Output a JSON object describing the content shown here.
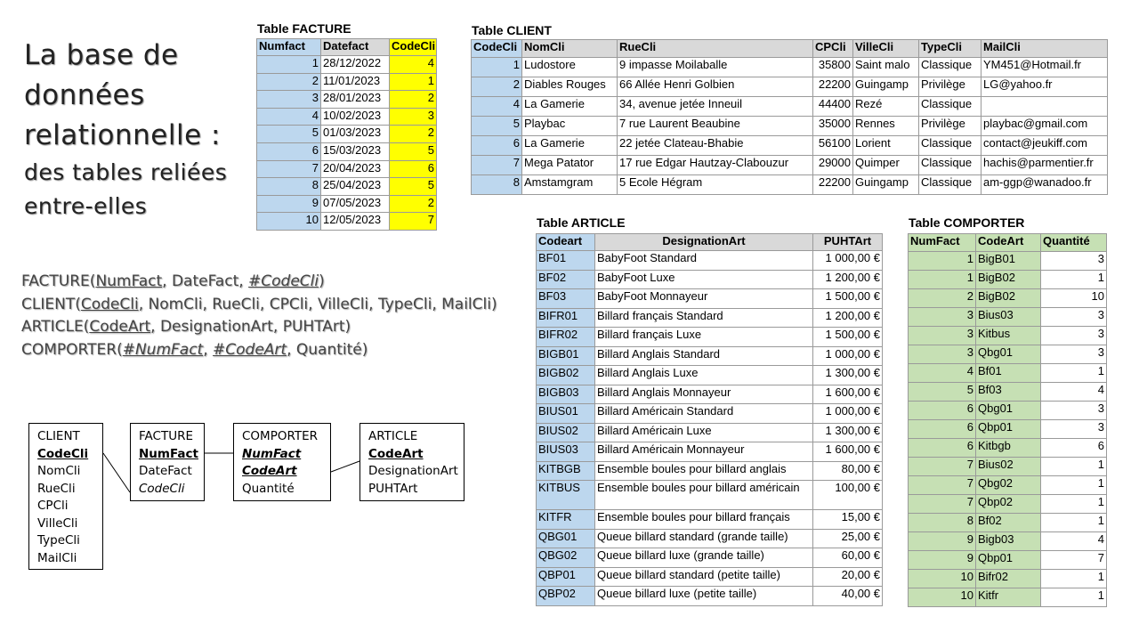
{
  "title": {
    "lines": [
      "La base de",
      "données",
      "relationnelle :",
      "des tables reliées",
      "entre-elles"
    ]
  },
  "schema": [
    [
      {
        "t": "FACTURE("
      },
      {
        "t": "NumFact",
        "s": "u"
      },
      {
        "t": ", DateFact, "
      },
      {
        "t": "#CodeCli",
        "s": "u i"
      },
      {
        "t": ")"
      }
    ],
    [
      {
        "t": "CLIENT("
      },
      {
        "t": "CodeCli",
        "s": "u"
      },
      {
        "t": ", NomCli, RueCli, CPCli, VilleCli, TypeCli, MailCli)"
      }
    ],
    [
      {
        "t": "ARTICLE("
      },
      {
        "t": "CodeArt",
        "s": "u"
      },
      {
        "t": ", DesignationArt, PUHTArt)"
      }
    ],
    [
      {
        "t": "COMPORTER("
      },
      {
        "t": "#NumFact",
        "s": "u i"
      },
      {
        "t": ", "
      },
      {
        "t": "#CodeArt",
        "s": "u i"
      },
      {
        "t": ", Quantité)"
      }
    ]
  ],
  "diagram": [
    {
      "name": "CLIENT",
      "fields": [
        {
          "t": "CodeCli",
          "s": "b u"
        },
        {
          "t": "NomCli"
        },
        {
          "t": "RueCli"
        },
        {
          "t": "CPCli"
        },
        {
          "t": "VilleCli"
        },
        {
          "t": "TypeCli"
        },
        {
          "t": "MailCli"
        }
      ]
    },
    {
      "name": "FACTURE",
      "fields": [
        {
          "t": "NumFact",
          "s": "b u"
        },
        {
          "t": "DateFact"
        },
        {
          "t": "CodeCli",
          "s": "i"
        }
      ]
    },
    {
      "name": "COMPORTER",
      "fields": [
        {
          "t": "NumFact",
          "s": "b u i"
        },
        {
          "t": "CodeArt",
          "s": "b u i"
        },
        {
          "t": "Quantité"
        }
      ]
    },
    {
      "name": "ARTICLE",
      "fields": [
        {
          "t": "CodeArt",
          "s": "b u"
        },
        {
          "t": "DesignationArt"
        },
        {
          "t": "PUHTArt"
        }
      ]
    }
  ],
  "tables": {
    "facture": {
      "title": "Table FACTURE",
      "headers": [
        "Numfact",
        "Datefact",
        "CodeCli"
      ],
      "rows": [
        [
          "1",
          "28/12/2022",
          "4"
        ],
        [
          "2",
          "11/01/2023",
          "1"
        ],
        [
          "3",
          "28/01/2023",
          "2"
        ],
        [
          "4",
          "10/02/2023",
          "3"
        ],
        [
          "5",
          "01/03/2023",
          "2"
        ],
        [
          "6",
          "15/03/2023",
          "5"
        ],
        [
          "7",
          "20/04/2023",
          "6"
        ],
        [
          "8",
          "25/04/2023",
          "5"
        ],
        [
          "9",
          "07/05/2023",
          "2"
        ],
        [
          "10",
          "12/05/2023",
          "7"
        ]
      ]
    },
    "client": {
      "title": "Table CLIENT",
      "headers": [
        "CodeCli",
        "NomCli",
        "RueCli",
        "CPCli",
        "VilleCli",
        "TypeCli",
        "MailCli"
      ],
      "rows": [
        [
          "1",
          "Ludostore",
          "9 impasse Moilaballe",
          "35800",
          "Saint malo",
          "Classique",
          "YM451@Hotmail.fr"
        ],
        [
          "2",
          "Diables Rouges",
          "66 Allée Henri Golbien",
          "22200",
          "Guingamp",
          "Privilège",
          "LG@yahoo.fr"
        ],
        [
          "4",
          "La Gamerie",
          "34, avenue jetée Inneuil",
          "44400",
          "Rezé",
          "Classique",
          null
        ],
        [
          "5",
          "Playbac",
          "7 rue Laurent Beaubine",
          "35000",
          "Rennes",
          "Privilège",
          "playbac@gmail.com"
        ],
        [
          "6",
          "La Gamerie",
          "22 jetée Clateau-Bhabie",
          "56100",
          "Lorient",
          "Classique",
          "contact@jeukiff.com"
        ],
        [
          "7",
          "Mega Patator",
          "17 rue Edgar Hautzay-Clabouzur",
          "29000",
          "Quimper",
          "Classique",
          "hachis@parmentier.fr"
        ],
        [
          "8",
          "Amstamgram",
          "5 Ecole Hégram",
          "22200",
          "Guingamp",
          "Classique",
          "am-ggp@wanadoo.fr"
        ]
      ]
    },
    "article": {
      "title": "Table ARTICLE",
      "headers": [
        "Codeart",
        "DesignationArt",
        "PUHTArt"
      ],
      "rows": [
        [
          "BF01",
          "BabyFoot Standard",
          "1 000,00 €"
        ],
        [
          "BF02",
          "BabyFoot Luxe",
          "1 200,00 €"
        ],
        [
          "BF03",
          "BabyFoot Monnayeur",
          "1 500,00 €"
        ],
        [
          "BIFR01",
          "Billard français Standard",
          "1 200,00 €"
        ],
        [
          "BIFR02",
          "Billard français Luxe",
          "1 500,00 €"
        ],
        [
          "BIGB01",
          "Billard Anglais Standard",
          "1 000,00 €"
        ],
        [
          "BIGB02",
          "Billard Anglais Luxe",
          "1 300,00 €"
        ],
        [
          "BIGB03",
          "Billard Anglais Monnayeur",
          "1 600,00 €"
        ],
        [
          "BIUS01",
          "Billard Américain Standard",
          "1 000,00 €"
        ],
        [
          "BIUS02",
          "Billard Américain Luxe",
          "1 300,00 €"
        ],
        [
          "BIUS03",
          "Billard Américain Monnayeur",
          "1 600,00 €"
        ],
        [
          "KITBGB",
          "Ensemble boules pour billard anglais",
          "80,00 €"
        ],
        [
          "KITBUS",
          "Ensemble boules pour billard américain",
          "100,00 €"
        ],
        [
          "KITFR",
          "Ensemble boules pour billard français",
          "15,00 €"
        ],
        [
          "QBG01",
          "Queue billard standard (grande taille)",
          "25,00 €"
        ],
        [
          "QBG02",
          "Queue billard luxe (grande taille)",
          "60,00 €"
        ],
        [
          "QBP01",
          "Queue billard standard (petite taille)",
          "20,00 €"
        ],
        [
          "QBP02",
          "Queue billard luxe (petite taille)",
          "40,00 €"
        ]
      ]
    },
    "comporter": {
      "title": "Table COMPORTER",
      "headers": [
        "NumFact",
        "CodeArt",
        "Quantité"
      ],
      "rows": [
        [
          "1",
          "BigB01",
          "3"
        ],
        [
          "1",
          "BigB02",
          "1"
        ],
        [
          "2",
          "BigB02",
          "10"
        ],
        [
          "3",
          "Bius03",
          "3"
        ],
        [
          "3",
          "Kitbus",
          "3"
        ],
        [
          "3",
          "Qbg01",
          "3"
        ],
        [
          "4",
          "Bf01",
          "1"
        ],
        [
          "5",
          "Bf03",
          "4"
        ],
        [
          "6",
          "Qbg01",
          "3"
        ],
        [
          "6",
          "Qbp01",
          "3"
        ],
        [
          "6",
          "Kitbgb",
          "6"
        ],
        [
          "7",
          "Bius02",
          "1"
        ],
        [
          "7",
          "Qbg02",
          "1"
        ],
        [
          "7",
          "Qbp02",
          "1"
        ],
        [
          "8",
          "Bf02",
          "1"
        ],
        [
          "9",
          "Bigb03",
          "4"
        ],
        [
          "9",
          "Qbp01",
          "7"
        ],
        [
          "10",
          "Bifr02",
          "1"
        ],
        [
          "10",
          "Kitfr",
          "1"
        ]
      ]
    }
  }
}
